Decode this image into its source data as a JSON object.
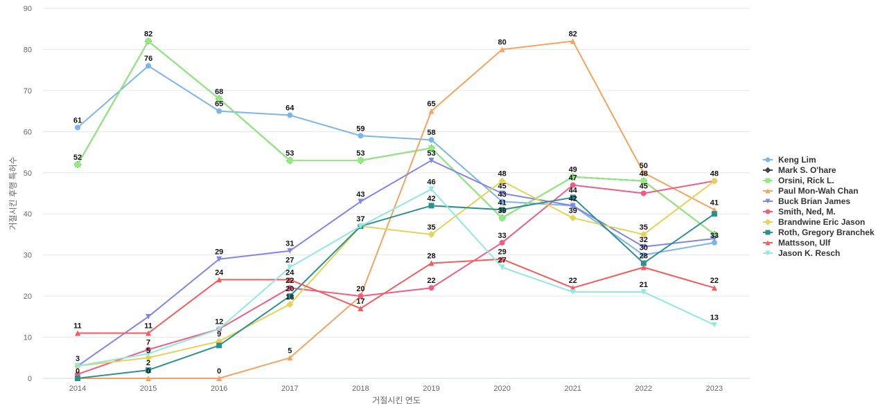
{
  "chart_data": {
    "type": "line",
    "xlabel": "거절시킨 연도",
    "ylabel": "거절시킨 후행 특허수",
    "ylim": [
      0,
      90
    ],
    "yticks": [
      0,
      10,
      20,
      30,
      40,
      50,
      60,
      70,
      80,
      90
    ],
    "grid": true,
    "legend_position": "right",
    "x": [
      "2014",
      "2015",
      "2016",
      "2017",
      "2018",
      "2019",
      "2020",
      "2021",
      "2022",
      "2023"
    ],
    "series": [
      {
        "name": "Keng Lim",
        "color": "#7cb5ec",
        "marker": "circle",
        "values": [
          61,
          76,
          65,
          64,
          59,
          58,
          43,
          42,
          30,
          33
        ]
      },
      {
        "name": "Mark S. O'hare",
        "color": "#434348",
        "marker": "diamond",
        "values": [
          52,
          82,
          68,
          53,
          53,
          56,
          39,
          49,
          48,
          35
        ]
      },
      {
        "name": "Orsini, Rick L.",
        "color": "#90ed7d",
        "marker": "square",
        "values": [
          52,
          82,
          68,
          53,
          53,
          56,
          39,
          49,
          48,
          35
        ]
      },
      {
        "name": "Paul Mon-Wah Chan",
        "color": "#f7a35c",
        "marker": "triangle",
        "values": [
          0,
          0,
          0,
          5,
          20,
          65,
          80,
          82,
          50,
          41
        ]
      },
      {
        "name": "Buck Brian James",
        "color": "#8085e9",
        "marker": "triangle-down",
        "values": [
          3,
          15,
          29,
          31,
          43,
          53,
          45,
          42,
          32,
          34
        ]
      },
      {
        "name": "Smith, Ned, M.",
        "color": "#f15c80",
        "marker": "circle",
        "values": [
          1,
          7,
          12,
          22,
          20,
          22,
          33,
          47,
          45,
          48
        ]
      },
      {
        "name": "Brandwine Eric Jason",
        "color": "#e4d354",
        "marker": "diamond",
        "values": [
          3,
          5,
          9,
          18,
          37,
          35,
          48,
          39,
          35,
          48
        ]
      },
      {
        "name": "Roth, Gregory Branchek",
        "color": "#2b908f",
        "marker": "square",
        "values": [
          0,
          2,
          8,
          20,
          37,
          42,
          41,
          44,
          28,
          40
        ]
      },
      {
        "name": "Mattsson, Ulf",
        "color": "#f45b5b",
        "marker": "triangle",
        "values": [
          11,
          11,
          24,
          24,
          17,
          28,
          29,
          22,
          27,
          22
        ]
      },
      {
        "name": "Jason K. Resch",
        "color": "#91e8e1",
        "marker": "triangle-down",
        "values": [
          3,
          6,
          12,
          27,
          37,
          46,
          27,
          21,
          21,
          13
        ]
      }
    ],
    "point_labels": [
      [
        0,
        61
      ],
      [
        1,
        76
      ],
      [
        2,
        65
      ],
      [
        3,
        64
      ],
      [
        4,
        59
      ],
      [
        5,
        58
      ],
      [
        6,
        43
      ],
      [
        9,
        33
      ],
      [
        0,
        52
      ],
      [
        1,
        82
      ],
      [
        2,
        68
      ],
      [
        3,
        53
      ],
      [
        4,
        53
      ],
      [
        5,
        53
      ],
      [
        6,
        39
      ],
      [
        7,
        49
      ],
      [
        8,
        48
      ],
      [
        9,
        48
      ],
      [
        1,
        0
      ],
      [
        2,
        0
      ],
      [
        3,
        5
      ],
      [
        4,
        20
      ],
      [
        5,
        65
      ],
      [
        6,
        80
      ],
      [
        7,
        82
      ],
      [
        8,
        50
      ],
      [
        9,
        41
      ],
      [
        2,
        29
      ],
      [
        3,
        31
      ],
      [
        4,
        43
      ],
      [
        6,
        45
      ],
      [
        8,
        32
      ],
      [
        0,
        0
      ],
      [
        1,
        5
      ],
      [
        7,
        44
      ],
      [
        8,
        45
      ],
      [
        1,
        7
      ],
      [
        2,
        9
      ],
      [
        3,
        18
      ],
      [
        5,
        35
      ],
      [
        6,
        48
      ],
      [
        7,
        39
      ],
      [
        8,
        35
      ],
      [
        1,
        2
      ],
      [
        3,
        20
      ],
      [
        4,
        37
      ],
      [
        5,
        42
      ],
      [
        6,
        41
      ],
      [
        7,
        42
      ],
      [
        8,
        28
      ],
      [
        0,
        11
      ],
      [
        1,
        11
      ],
      [
        2,
        24
      ],
      [
        3,
        24
      ],
      [
        4,
        17
      ],
      [
        5,
        28
      ],
      [
        6,
        29
      ],
      [
        7,
        22
      ],
      [
        9,
        22
      ],
      [
        0,
        3
      ],
      [
        2,
        12
      ],
      [
        3,
        27
      ],
      [
        5,
        46
      ],
      [
        6,
        27
      ],
      [
        7,
        47
      ],
      [
        8,
        30
      ],
      [
        9,
        13
      ],
      [
        3,
        22
      ],
      [
        5,
        22
      ],
      [
        6,
        33
      ],
      [
        8,
        21
      ]
    ]
  }
}
